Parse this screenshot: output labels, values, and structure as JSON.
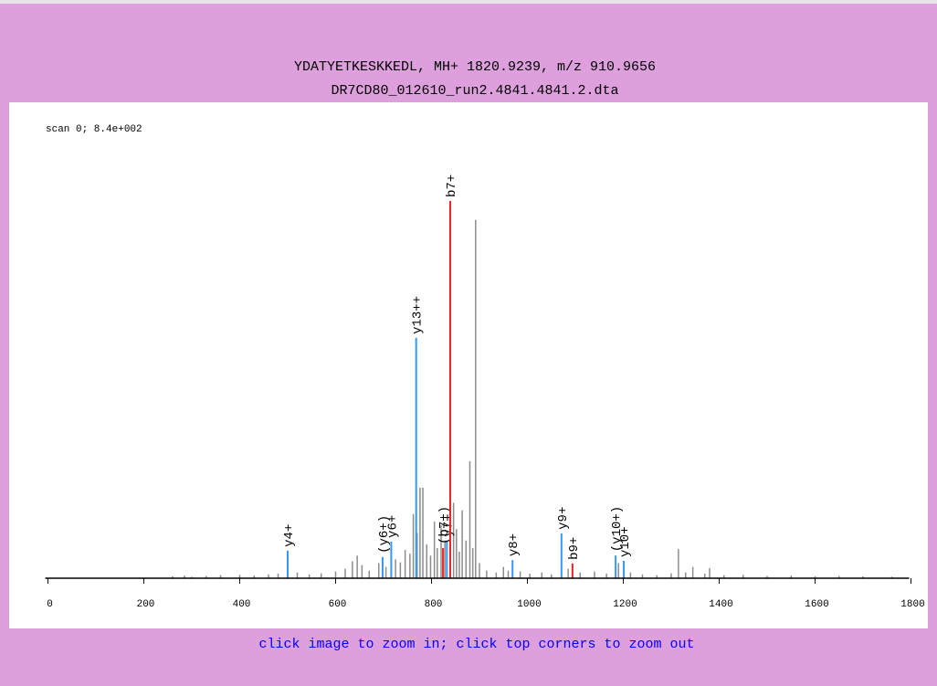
{
  "chart_data": {
    "type": "spectrum",
    "title": "YDATYETKESKKEDL, MH+ 1820.9239, m/z 910.9656",
    "subtitle": "DR7CD80_012610_run2.4841.4841.2.dta",
    "annotation": "scan 0; 8.4e+002",
    "footer": "click image to zoom in; click top corners to zoom out",
    "xlim": [
      0,
      1800
    ],
    "xticks": [
      0,
      200,
      400,
      600,
      800,
      1000,
      1200,
      1400,
      1600,
      1800
    ],
    "ylim": [
      0,
      100
    ],
    "series": [
      {
        "color": "#8c8c8c",
        "x": [
          260,
          285,
          300,
          330,
          360,
          400,
          430,
          460,
          480,
          520,
          545,
          570,
          600,
          620,
          635,
          645,
          655,
          670,
          690,
          705,
          725,
          735,
          745,
          755,
          762,
          770,
          776,
          782,
          790,
          798,
          806,
          812,
          820,
          828,
          846,
          852,
          858,
          864,
          872,
          880,
          886,
          892,
          900,
          915,
          935,
          950,
          960,
          985,
          1005,
          1030,
          1050,
          1085,
          1110,
          1140,
          1165,
          1190,
          1215,
          1240,
          1270,
          1300,
          1315,
          1330,
          1345,
          1370,
          1380,
          1410,
          1450,
          1500,
          1550,
          1600,
          1650,
          1700,
          1760
        ],
        "values": [
          0.5,
          0.7,
          0.4,
          0.6,
          0.8,
          0.9,
          0.7,
          1.0,
          1.2,
          1.5,
          1.0,
          1.3,
          1.8,
          2.5,
          4.5,
          6.0,
          3.5,
          2.0,
          4.0,
          3.0,
          5.0,
          4.2,
          7.5,
          6.5,
          17,
          12,
          24,
          24,
          9,
          6,
          15,
          8,
          14,
          10,
          20,
          13,
          7,
          18,
          10,
          31,
          8,
          95,
          4,
          2,
          1.5,
          3.0,
          2.0,
          1.8,
          1.2,
          1.5,
          1.0,
          2.5,
          1.5,
          1.8,
          1.2,
          4.0,
          1.5,
          1.0,
          0.8,
          1.3,
          7.7,
          1.5,
          3.0,
          1.2,
          2.7,
          0.8,
          0.9,
          0.6,
          0.7,
          0.5,
          0.6,
          0.5,
          0.4
        ]
      },
      {
        "color": "#3399ff",
        "x": [
          500,
          698,
          716,
          768,
          832,
          969,
          1071,
          1184,
          1201
        ],
        "values": [
          7.3,
          5.6,
          9.7,
          63.7,
          10,
          4.8,
          11.9,
          6,
          4.6
        ],
        "labels": [
          "y4+",
          "(y6+)",
          "y6+",
          "y13++",
          "y7+",
          "y8+",
          "y9+",
          "(y10+)",
          "y10+"
        ]
      },
      {
        "color": "#ee2222",
        "x": [
          824,
          839,
          1094
        ],
        "values": [
          8,
          100,
          3.9
        ],
        "labels": [
          "(b7+)",
          "b7+",
          "b9+"
        ]
      }
    ]
  }
}
